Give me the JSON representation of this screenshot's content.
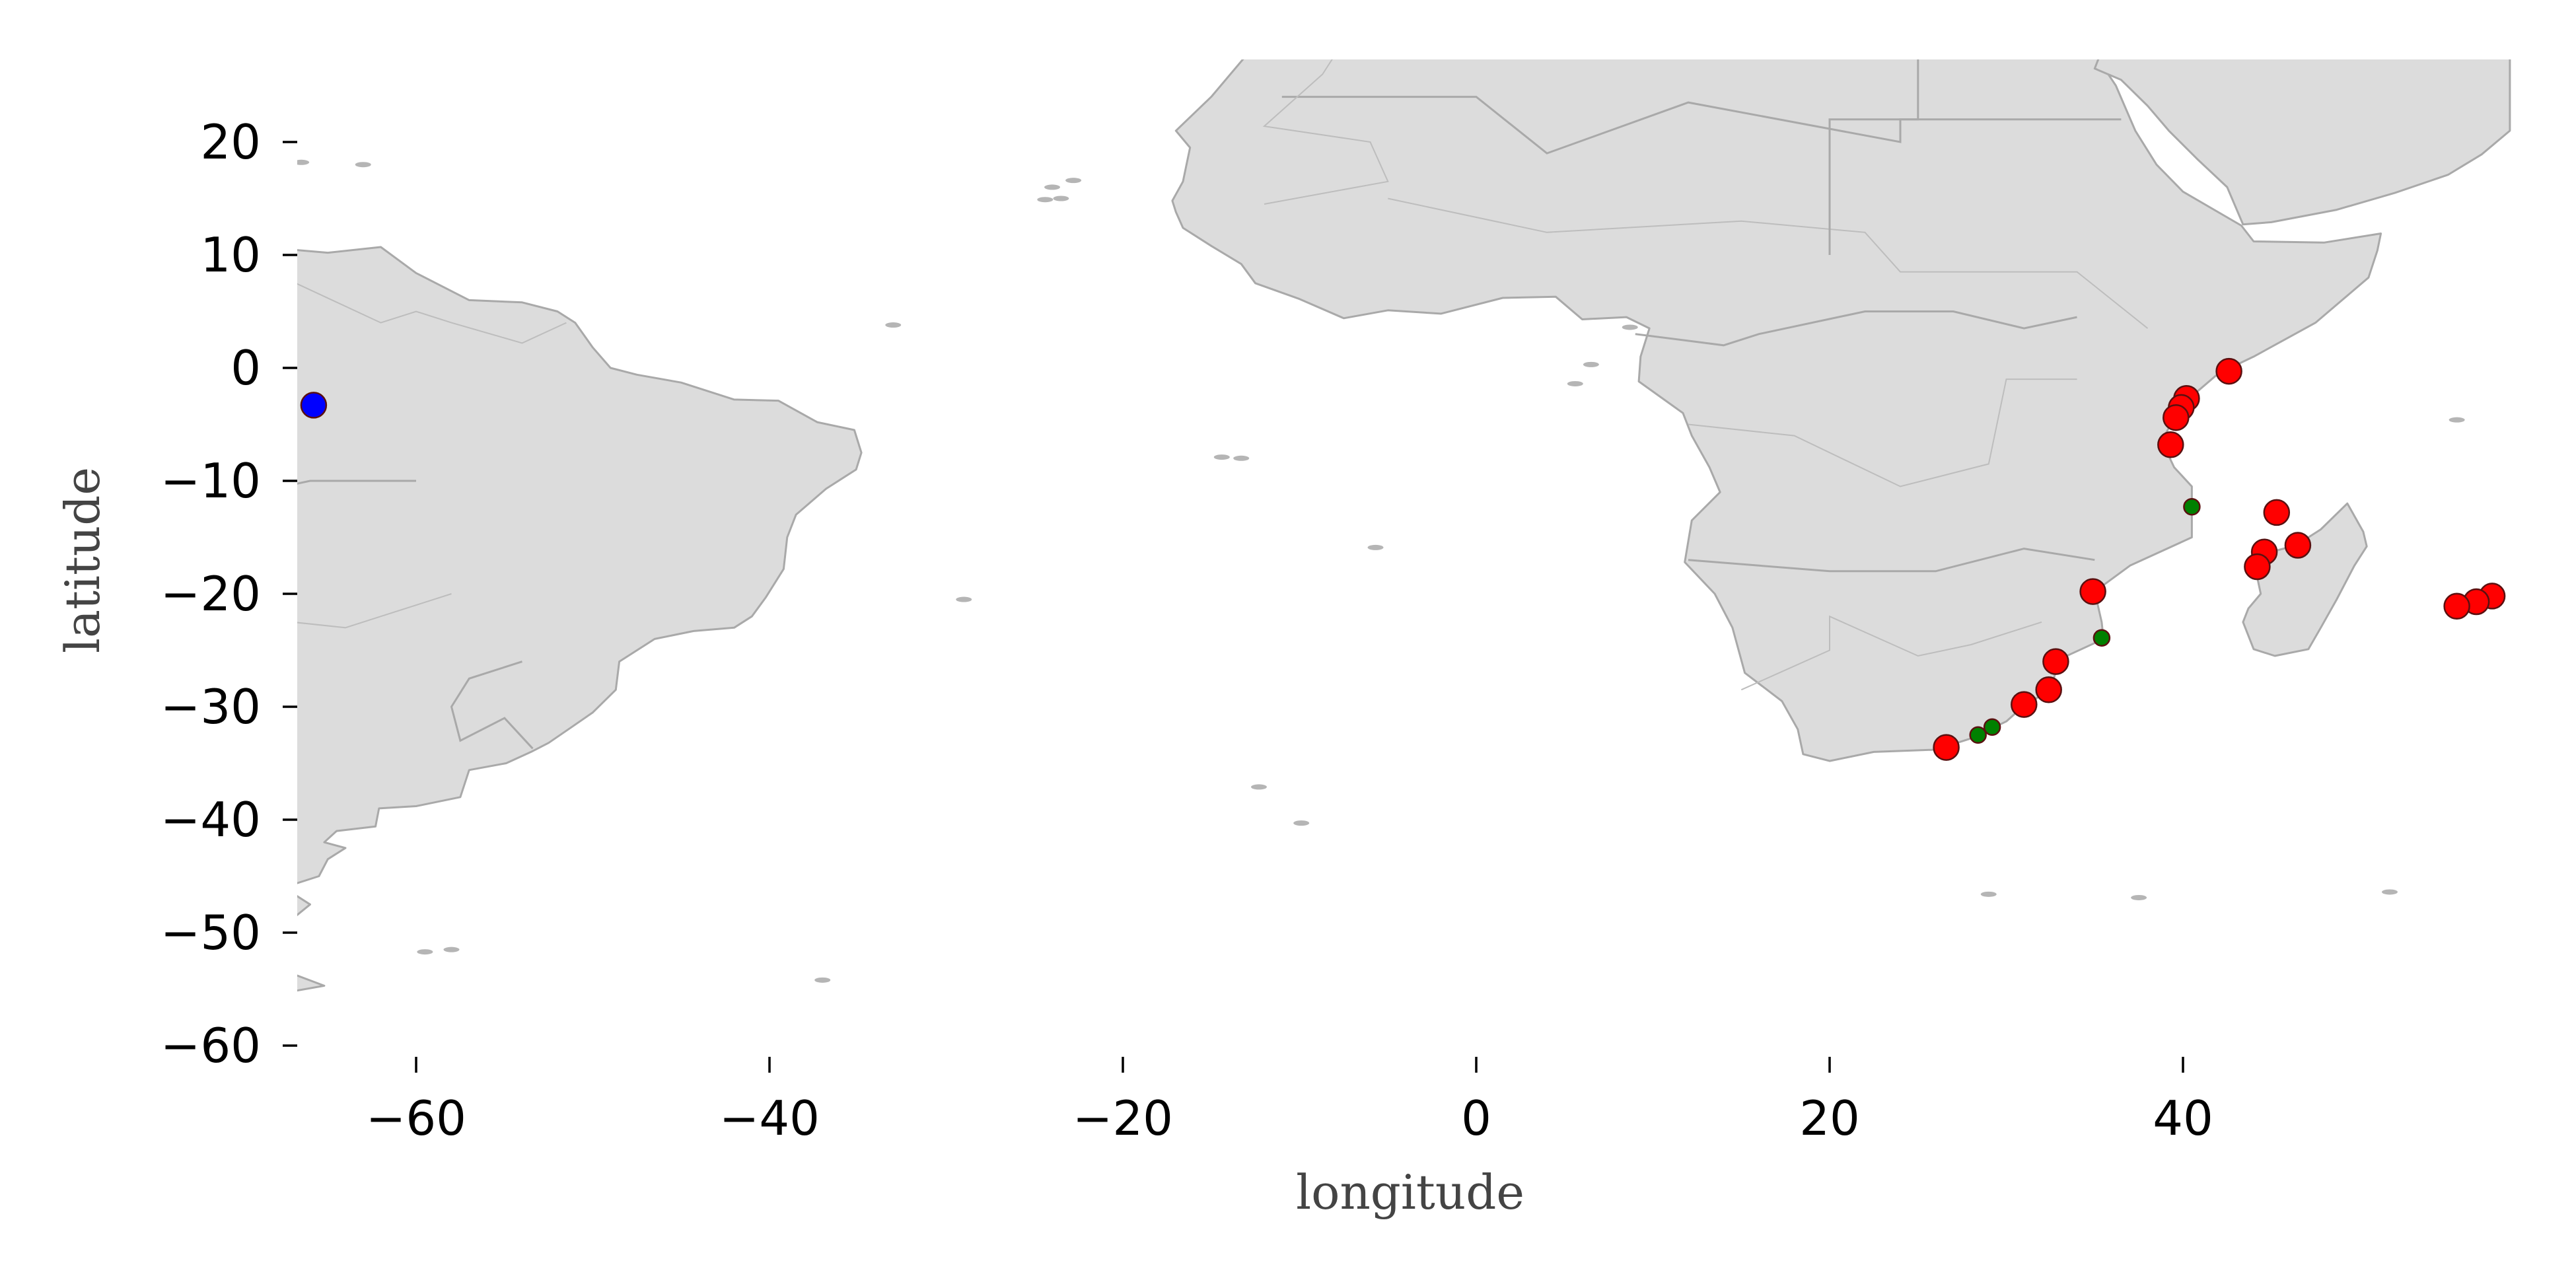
{
  "chart_data": {
    "type": "scatter",
    "xlabel": "longitude",
    "ylabel": "latitude",
    "xlim": [
      -68.5,
      58.5
    ],
    "ylim": [
      -61.5,
      26.5
    ],
    "xticks": [
      -60,
      -40,
      -20,
      0,
      20,
      40
    ],
    "yticks": [
      20,
      10,
      0,
      -10,
      -20,
      -30,
      -40,
      -50,
      -60
    ],
    "xtick_labels": [
      "−60",
      "−40",
      "−20",
      "0",
      "20",
      "40"
    ],
    "ytick_labels": [
      "20",
      "10",
      "0",
      "−10",
      "−20",
      "−30",
      "−40",
      "−50",
      "−60"
    ],
    "basemap": {
      "land_color": "#dcdcdc",
      "border_color": "#a9a9a9",
      "regions_shown": [
        "South America",
        "Africa",
        "Arabian Peninsula",
        "Madagascar",
        "Mascarene Islands"
      ]
    },
    "grid": false,
    "series": [
      {
        "color": "#ff0000",
        "marker_size": "large",
        "points": [
          {
            "x": 42.6,
            "y": -0.3
          },
          {
            "x": 40.2,
            "y": -2.7
          },
          {
            "x": 39.9,
            "y": -3.5
          },
          {
            "x": 39.6,
            "y": -4.4
          },
          {
            "x": 39.3,
            "y": -6.8
          },
          {
            "x": 45.3,
            "y": -12.8
          },
          {
            "x": 46.5,
            "y": -15.7
          },
          {
            "x": 44.6,
            "y": -16.3
          },
          {
            "x": 44.2,
            "y": -17.6
          },
          {
            "x": 34.9,
            "y": -19.8
          },
          {
            "x": 57.5,
            "y": -20.2
          },
          {
            "x": 56.6,
            "y": -20.7
          },
          {
            "x": 55.5,
            "y": -21.1
          },
          {
            "x": 32.8,
            "y": -26.0
          },
          {
            "x": 32.4,
            "y": -28.5
          },
          {
            "x": 31.0,
            "y": -29.8
          },
          {
            "x": 26.6,
            "y": -33.6
          }
        ]
      },
      {
        "color": "#008000",
        "marker_size": "small",
        "points": [
          {
            "x": 40.5,
            "y": -12.3
          },
          {
            "x": 35.4,
            "y": -23.9
          },
          {
            "x": 29.2,
            "y": -31.8
          },
          {
            "x": 28.4,
            "y": -32.5
          }
        ]
      },
      {
        "color": "#0000ff",
        "marker_size": "large",
        "points": [
          {
            "x": -65.8,
            "y": -3.3
          }
        ]
      }
    ]
  }
}
